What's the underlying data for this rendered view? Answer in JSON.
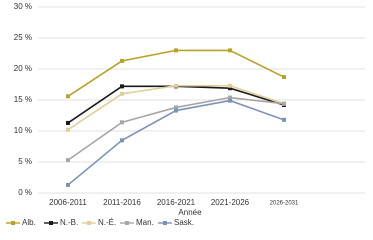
{
  "chart_data": {
    "type": "line",
    "x_label": "Année",
    "categories": [
      "2006-2011",
      "2011-2016",
      "2016-2021",
      "2021-2026",
      "2026-2031"
    ],
    "series": [
      {
        "name": "Alb.",
        "color": "#b8a22a",
        "values": [
          15.6,
          21.3,
          23,
          23,
          18.7
        ]
      },
      {
        "name": "N.-B.",
        "color": "#1a1a1a",
        "values": [
          11.3,
          17.2,
          17.2,
          16.9,
          14.2
        ]
      },
      {
        "name": "N.-É.",
        "color": "#e0cf9a",
        "values": [
          10.2,
          16,
          17.3,
          17.3,
          14.4
        ]
      },
      {
        "name": "Man.",
        "color": "#a6a6a6",
        "values": [
          5.3,
          11.4,
          13.8,
          15.4,
          14.4
        ]
      },
      {
        "name": "Sask.",
        "color": "#7b93b8",
        "values": [
          1.3,
          8.5,
          13.3,
          14.9,
          11.8
        ]
      }
    ],
    "ylim": [
      0,
      30
    ],
    "yticks": [
      {
        "value": 0,
        "label": "0 %"
      },
      {
        "value": 5,
        "label": "5 %"
      },
      {
        "value": 10,
        "label": "10 %"
      },
      {
        "value": 15,
        "label": "15 %"
      },
      {
        "value": 20,
        "label": "20 %"
      },
      {
        "value": 25,
        "label": "25 %"
      },
      {
        "value": 30,
        "label": "30 %"
      }
    ],
    "grid": true
  }
}
